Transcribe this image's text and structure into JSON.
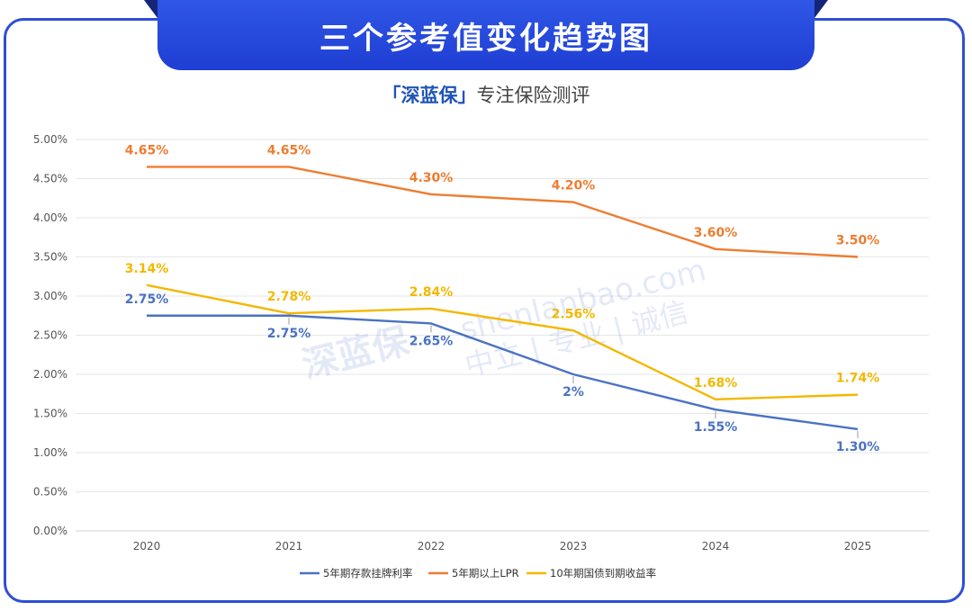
{
  "header": {
    "title": "三个参考值变化趋势图",
    "brand": "「深蓝保」",
    "tagline": "专注保险测评"
  },
  "watermark": {
    "url": "shenlanbao.com",
    "logo_text": "深蓝保",
    "slogan": "中立 | 专业 | 诚信"
  },
  "colors": {
    "banner": "#2745de",
    "deposit": "#4a72c2",
    "lpr": "#ed7d31",
    "bond": "#f2b800"
  },
  "chart_data": {
    "type": "line",
    "categories": [
      "2020",
      "2021",
      "2022",
      "2023",
      "2024",
      "2025"
    ],
    "ylim": [
      0,
      5
    ],
    "yticks": [
      "0.00%",
      "0.50%",
      "1.00%",
      "1.50%",
      "2.00%",
      "2.50%",
      "3.00%",
      "3.50%",
      "4.00%",
      "4.50%",
      "5.00%"
    ],
    "grid": true,
    "legend_position": "bottom",
    "series": [
      {
        "name": "5年期存款挂牌利率",
        "color": "#4a72c2",
        "values": [
          2.75,
          2.75,
          2.65,
          2.0,
          1.55,
          1.3
        ],
        "labels": [
          "2.75%",
          "2.75%",
          "2.65%",
          "2%",
          "1.55%",
          "1.30%"
        ]
      },
      {
        "name": "5年期以上LPR",
        "color": "#ed7d31",
        "values": [
          4.65,
          4.65,
          4.3,
          4.2,
          3.6,
          3.5
        ],
        "labels": [
          "4.65%",
          "4.65%",
          "4.30%",
          "4.20%",
          "3.60%",
          "3.50%"
        ]
      },
      {
        "name": "10年期国债到期收益率",
        "color": "#f2b800",
        "values": [
          3.14,
          2.78,
          2.84,
          2.56,
          1.68,
          1.74
        ],
        "labels": [
          "3.14%",
          "2.78%",
          "2.84%",
          "2.56%",
          "1.68%",
          "1.74%"
        ]
      }
    ]
  }
}
